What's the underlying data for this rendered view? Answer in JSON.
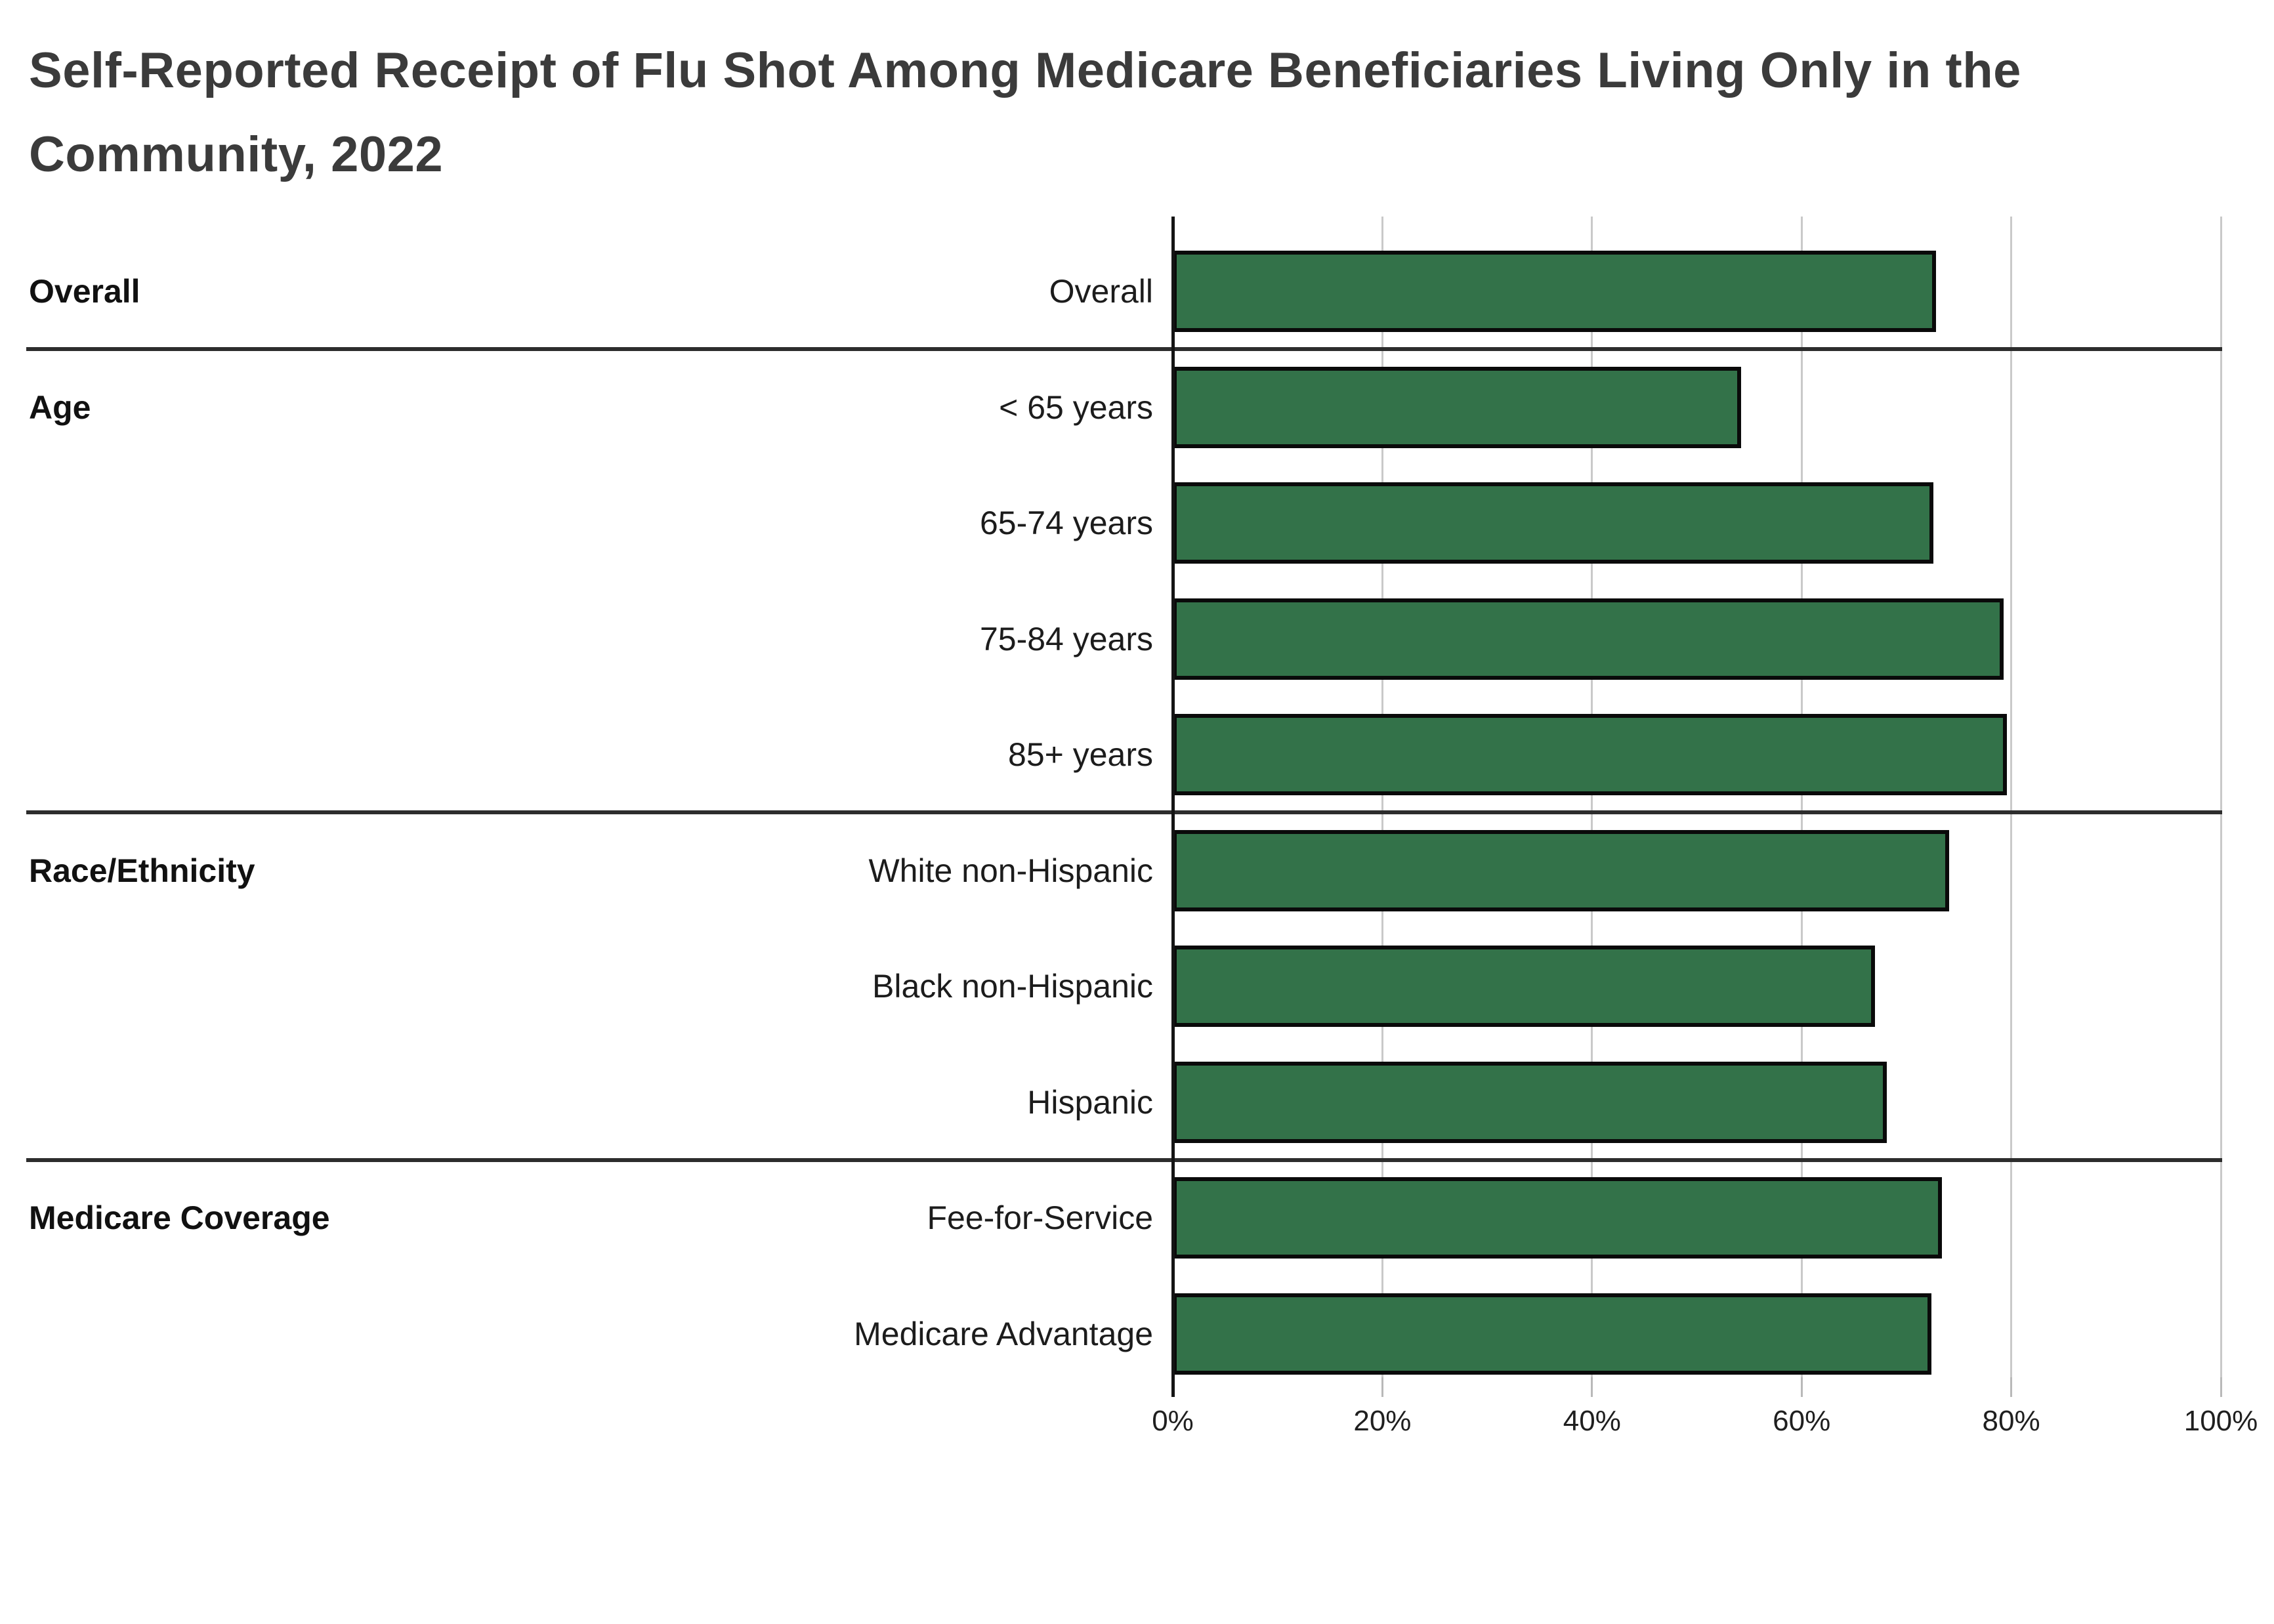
{
  "title": "Self-Reported Receipt of Flu Shot Among Medicare Beneficiaries Living Only in the Community, 2022",
  "chart_data": {
    "type": "bar",
    "orientation": "horizontal",
    "title": "Self-Reported Receipt of Flu Shot Among Medicare Beneficiaries Living Only in the Community, 2022",
    "xlabel": "",
    "ylabel": "",
    "xlim": [
      0,
      100
    ],
    "grid": true,
    "x_axis": {
      "ticks": [
        0,
        20,
        40,
        60,
        80,
        100
      ],
      "tick_labels": [
        "0%",
        "20%",
        "40%",
        "60%",
        "80%",
        "100%"
      ]
    },
    "groups": [
      {
        "label": "Overall",
        "rows": [
          {
            "label": "Overall",
            "value": 72.8
          }
        ]
      },
      {
        "label": "Age",
        "rows": [
          {
            "label": "< 65 years",
            "value": 54.2
          },
          {
            "label": "65-74 years",
            "value": 72.6
          },
          {
            "label": "75-84 years",
            "value": 79.3
          },
          {
            "label": "85+ years",
            "value": 79.6
          }
        ]
      },
      {
        "label": "Race/Ethnicity",
        "rows": [
          {
            "label": "White non-Hispanic",
            "value": 74.1
          },
          {
            "label": "Black non-Hispanic",
            "value": 67.0
          },
          {
            "label": "Hispanic",
            "value": 68.1
          }
        ]
      },
      {
        "label": "Medicare Coverage",
        "rows": [
          {
            "label": "Fee-for-Service",
            "value": 73.4
          },
          {
            "label": "Medicare Advantage",
            "value": 72.4
          }
        ]
      }
    ],
    "colors": {
      "bar_fill": "#337249",
      "bar_border": "#0a0a0a",
      "gridline": "#c9c9c9",
      "axis_line": "#141414",
      "separator": "#2d2d2d",
      "title_text": "#3b3b3b",
      "label_text": "#1c1c1c"
    },
    "legend": null
  }
}
